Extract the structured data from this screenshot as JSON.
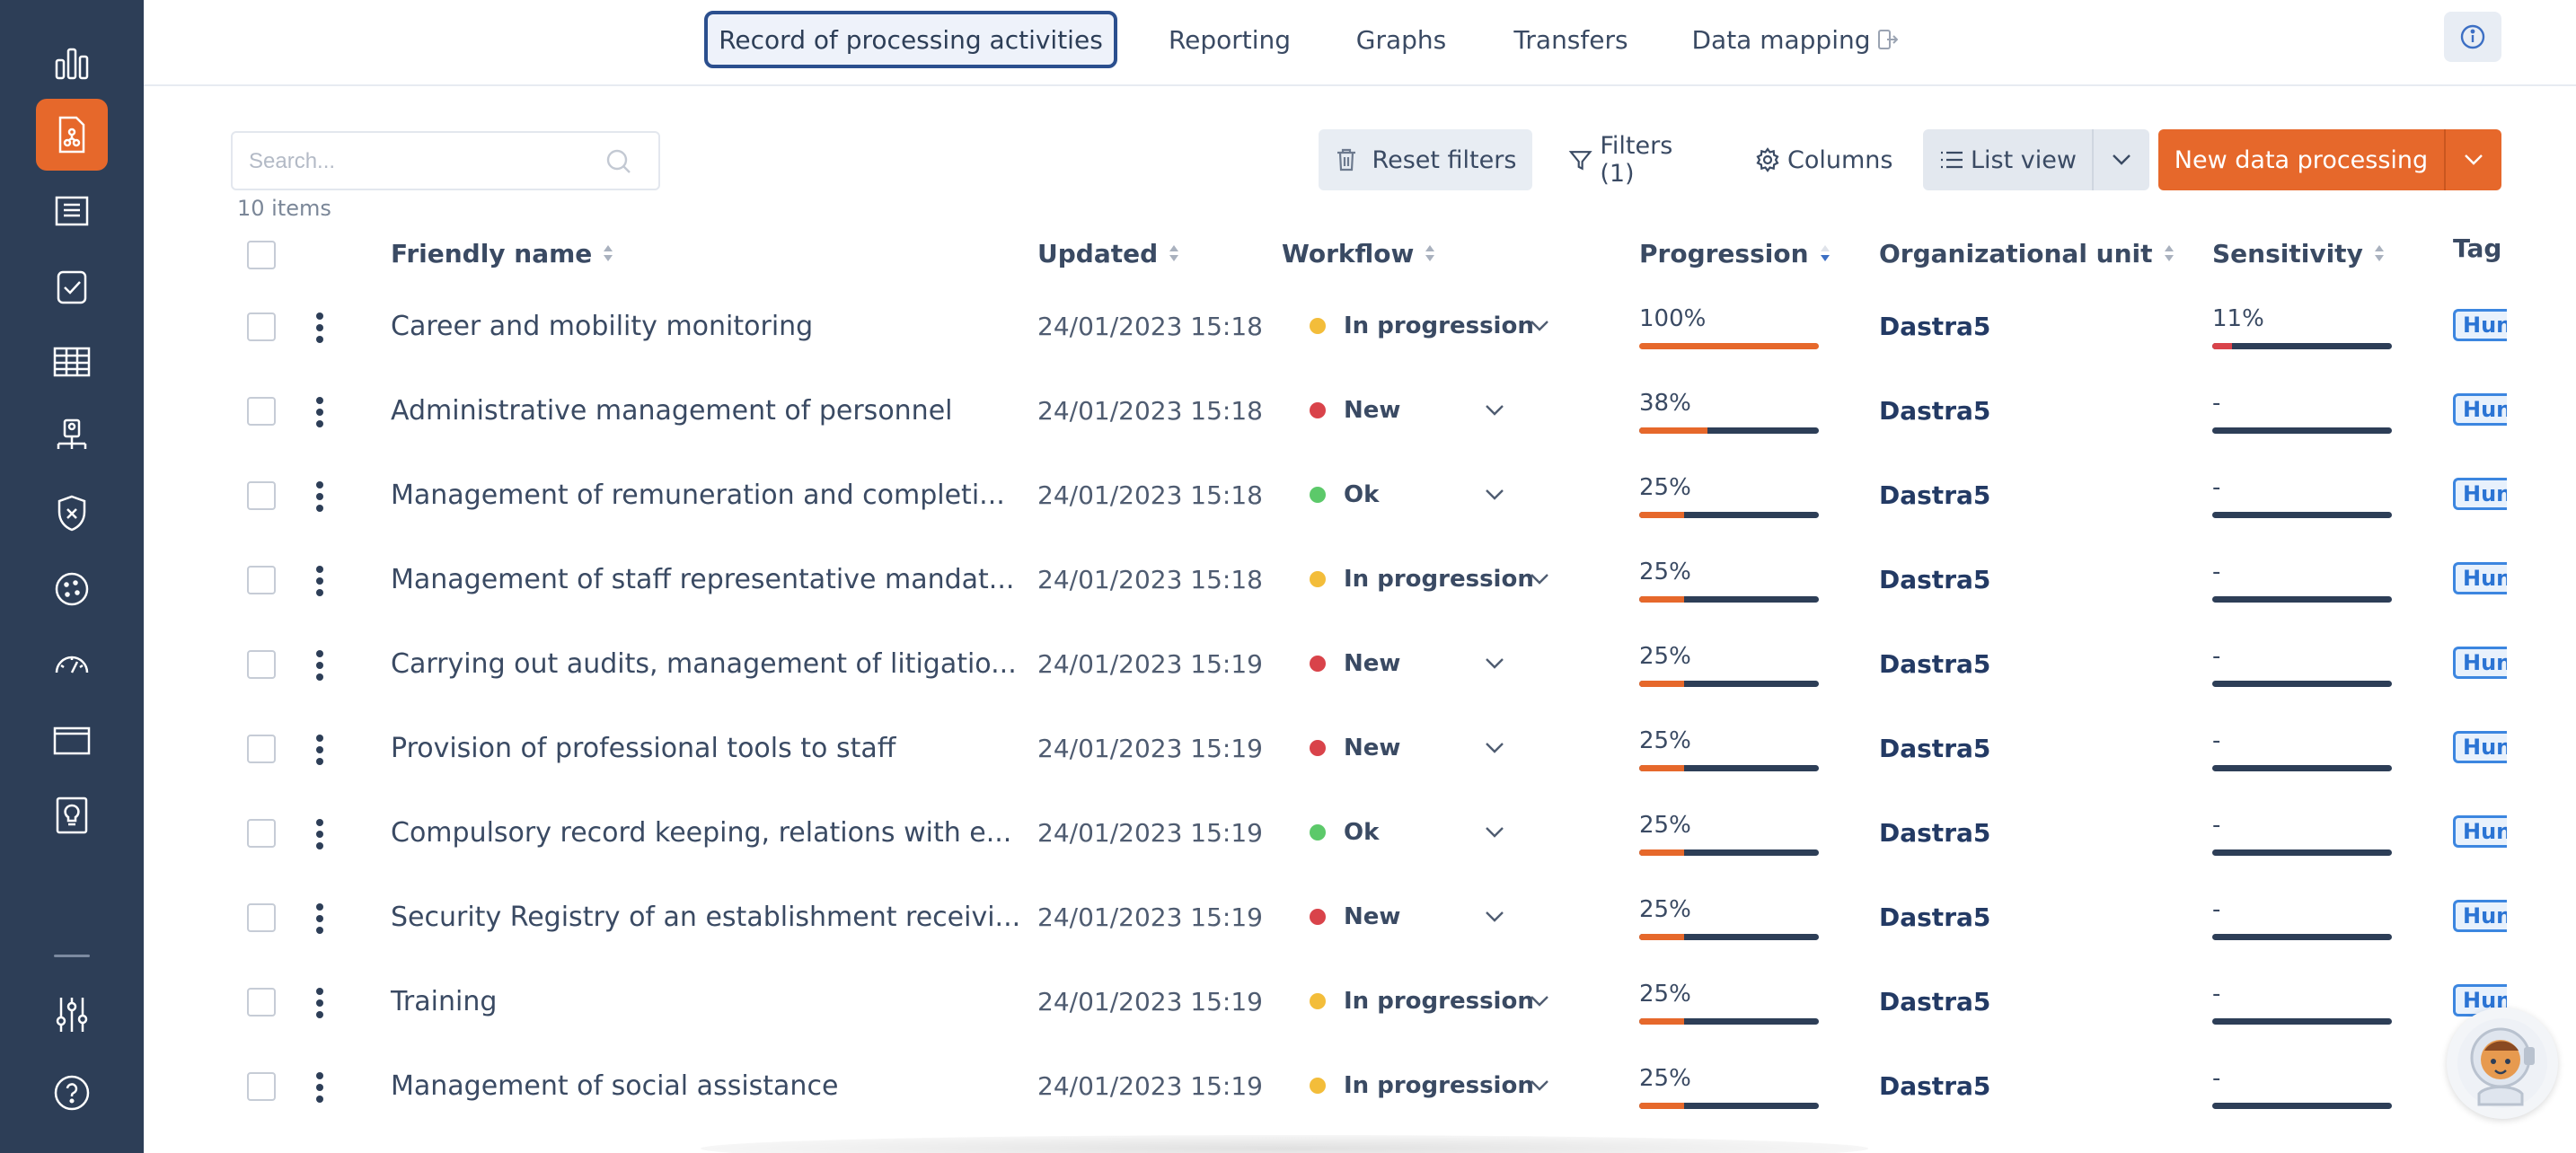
{
  "nav": {
    "tabs": [
      {
        "label": "Record of processing activities",
        "active": true
      },
      {
        "label": "Reporting"
      },
      {
        "label": "Graphs"
      },
      {
        "label": "Transfers"
      },
      {
        "label": "Data mapping",
        "icon": "external-link-icon"
      }
    ],
    "info_icon": "info-icon"
  },
  "sidebar": {
    "items": [
      {
        "icon": "bar-chart-icon"
      },
      {
        "icon": "register-document-icon",
        "active": true
      },
      {
        "icon": "database-document-icon"
      },
      {
        "icon": "checklist-icon"
      },
      {
        "icon": "table-view-icon"
      },
      {
        "icon": "org-chart-user-icon"
      },
      {
        "icon": "shield-x-icon"
      },
      {
        "icon": "cookie-icon"
      },
      {
        "icon": "gauge-icon"
      },
      {
        "icon": "folder-icon"
      },
      {
        "icon": "lightbulb-document-icon"
      },
      {
        "icon": "settings-sliders-icon"
      },
      {
        "icon": "help-circle-icon"
      }
    ]
  },
  "toolbar": {
    "search_placeholder": "Search...",
    "items_count": "10 items",
    "reset_filters": "Reset filters",
    "filters": "Filters (1)",
    "columns": "Columns",
    "list_view": "List view",
    "new_button": "New data processing"
  },
  "table": {
    "headers": {
      "name": "Friendly name",
      "updated": "Updated",
      "workflow": "Workflow",
      "progression": "Progression",
      "org": "Organizational unit",
      "sensitivity": "Sensitivity",
      "tag": "Tag"
    },
    "tag_text": "Hun",
    "rows": [
      {
        "name": "Career and mobility monitoring",
        "updated": "24/01/2023 15:18",
        "workflow": "In progression",
        "status_color": "#f3bd3a",
        "progression": "100%",
        "progress": 1.0,
        "org": "Dastra5",
        "sensitivity": "11%",
        "sens_value": 0.11
      },
      {
        "name": "Administrative management of personnel",
        "updated": "24/01/2023 15:18",
        "workflow": "New",
        "status_color": "#d9434a",
        "progression": "38%",
        "progress": 0.38,
        "org": "Dastra5",
        "sensitivity": "-",
        "sens_value": 0
      },
      {
        "name": "Management of remuneration and completi...",
        "updated": "24/01/2023 15:18",
        "workflow": "Ok",
        "status_color": "#5cc96a",
        "progression": "25%",
        "progress": 0.25,
        "org": "Dastra5",
        "sensitivity": "-",
        "sens_value": 0
      },
      {
        "name": "Management of staff representative mandat...",
        "updated": "24/01/2023 15:18",
        "workflow": "In progression",
        "status_color": "#f3bd3a",
        "progression": "25%",
        "progress": 0.25,
        "org": "Dastra5",
        "sensitivity": "-",
        "sens_value": 0
      },
      {
        "name": "Carrying out audits, management of litigatio...",
        "updated": "24/01/2023 15:19",
        "workflow": "New",
        "status_color": "#d9434a",
        "progression": "25%",
        "progress": 0.25,
        "org": "Dastra5",
        "sensitivity": "-",
        "sens_value": 0
      },
      {
        "name": "Provision of professional tools to staff",
        "updated": "24/01/2023 15:19",
        "workflow": "New",
        "status_color": "#d9434a",
        "progression": "25%",
        "progress": 0.25,
        "org": "Dastra5",
        "sensitivity": "-",
        "sens_value": 0
      },
      {
        "name": "Compulsory record keeping, relations with e...",
        "updated": "24/01/2023 15:19",
        "workflow": "Ok",
        "status_color": "#5cc96a",
        "progression": "25%",
        "progress": 0.25,
        "org": "Dastra5",
        "sensitivity": "-",
        "sens_value": 0
      },
      {
        "name": "Security Registry of an establishment receivi...",
        "updated": "24/01/2023 15:19",
        "workflow": "New",
        "status_color": "#d9434a",
        "progression": "25%",
        "progress": 0.25,
        "org": "Dastra5",
        "sensitivity": "-",
        "sens_value": 0
      },
      {
        "name": "Training",
        "updated": "24/01/2023 15:19",
        "workflow": "In progression",
        "status_color": "#f3bd3a",
        "progression": "25%",
        "progress": 0.25,
        "org": "Dastra5",
        "sensitivity": "-",
        "sens_value": 0
      },
      {
        "name": "Management of social assistance",
        "updated": "24/01/2023 15:19",
        "workflow": "In progression",
        "status_color": "#f3bd3a",
        "progression": "25%",
        "progress": 0.25,
        "org": "Dastra5",
        "sensitivity": "-",
        "sens_value": 0
      }
    ]
  },
  "colors": {
    "sidebar_bg": "#2d3e57",
    "accent": "#e6682b",
    "progress_fill": "#e6682b",
    "sensitivity_fill": "#d9434a",
    "tag_blue": "#3c86e0"
  },
  "assistant": {
    "icon": "astronaut-assistant-icon"
  }
}
